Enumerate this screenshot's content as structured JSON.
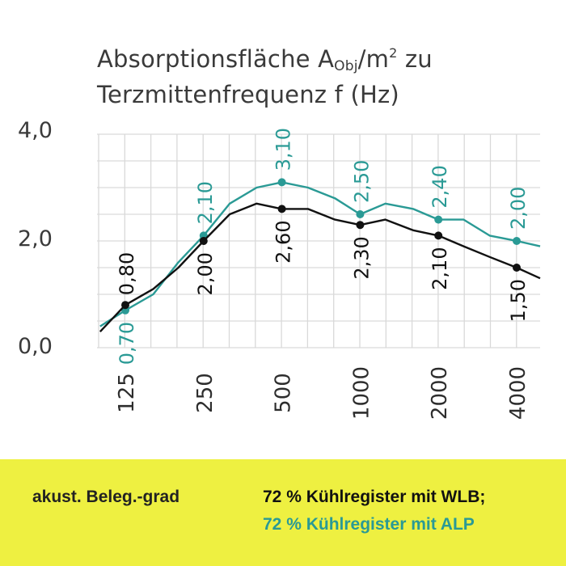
{
  "colors": {
    "black_series": "#111111",
    "teal_series": "#2a9a95",
    "grid": "#d9d9d9",
    "footer_bg": "#eef041"
  },
  "title": {
    "line1": "Absorptionsfläche A",
    "sub": "Obj",
    "unit": "/m",
    "sup": "2",
    "tail": " zu",
    "line2": "Terzmittenfrequenz f (Hz)"
  },
  "y_ticks": [
    "4,0",
    "2,0",
    "0,0"
  ],
  "footer": {
    "label": "akust. Beleg.-grad",
    "wlb": "72 % Kühlregister mit WLB;",
    "alp": "72 % Kühlregister mit ALP"
  },
  "chart_data": {
    "type": "line",
    "title": "Absorptionsfläche AObj/m² zu Terzmittenfrequenz f (Hz)",
    "x_scale": "log",
    "x_ticks": [
      "125",
      "250",
      "500",
      "1000",
      "2000",
      "4000"
    ],
    "x_tick_values": [
      125,
      250,
      500,
      1000,
      2000,
      4000
    ],
    "ylim": [
      0,
      4
    ],
    "grid": true,
    "series": [
      {
        "name": "72 % Kühlregister mit WLB",
        "color": "#111111",
        "x": [
          100,
          125,
          160,
          200,
          250,
          315,
          400,
          500,
          630,
          800,
          1000,
          1250,
          1600,
          2000,
          2500,
          3150,
          4000,
          5000
        ],
        "y": [
          0.3,
          0.8,
          1.1,
          1.5,
          2.0,
          2.5,
          2.7,
          2.6,
          2.6,
          2.4,
          2.3,
          2.4,
          2.2,
          2.1,
          1.9,
          1.7,
          1.5,
          1.3
        ],
        "labels": [
          {
            "x": 125,
            "y": 0.8,
            "text": "0,80"
          },
          {
            "x": 250,
            "y": 2.0,
            "text": "2,00"
          },
          {
            "x": 500,
            "y": 2.6,
            "text": "2,60"
          },
          {
            "x": 1000,
            "y": 2.3,
            "text": "2,30"
          },
          {
            "x": 2000,
            "y": 2.1,
            "text": "2,10"
          },
          {
            "x": 4000,
            "y": 1.5,
            "text": "1,50"
          }
        ]
      },
      {
        "name": "72 % Kühlregister mit ALP",
        "color": "#2a9a95",
        "x": [
          100,
          125,
          160,
          200,
          250,
          315,
          400,
          500,
          630,
          800,
          1000,
          1250,
          1600,
          2000,
          2500,
          3150,
          4000,
          5000
        ],
        "y": [
          0.4,
          0.7,
          1.0,
          1.6,
          2.1,
          2.7,
          3.0,
          3.1,
          3.0,
          2.8,
          2.5,
          2.7,
          2.6,
          2.4,
          2.4,
          2.1,
          2.0,
          1.9
        ],
        "labels": [
          {
            "x": 125,
            "y": 0.7,
            "text": "0,70"
          },
          {
            "x": 250,
            "y": 2.1,
            "text": "2,10"
          },
          {
            "x": 500,
            "y": 3.1,
            "text": "3,10"
          },
          {
            "x": 1000,
            "y": 2.5,
            "text": "2,50"
          },
          {
            "x": 2000,
            "y": 2.4,
            "text": "2,40"
          },
          {
            "x": 4000,
            "y": 2.0,
            "text": "2,00"
          }
        ]
      }
    ]
  }
}
